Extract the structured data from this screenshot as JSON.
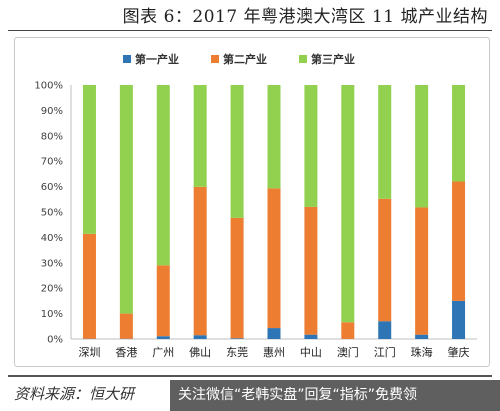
{
  "figure": {
    "title": "图表 6：2017 年粤港澳大湾区 11 城产业结构",
    "source_text": "资料来源：恒大研",
    "watermark_text": "关注微信“老韩实盘”回复“指标”免费领"
  },
  "chart_data": {
    "type": "bar",
    "stacked": true,
    "categories": [
      "深圳",
      "香港",
      "广州",
      "佛山",
      "东莞",
      "惠州",
      "中山",
      "澳门",
      "江门",
      "珠海",
      "肇庆"
    ],
    "series": [
      {
        "name": "第一产业",
        "color": "#2E75B6",
        "values": [
          0.1,
          0.1,
          1.1,
          1.5,
          0.3,
          4.3,
          1.7,
          0.0,
          7.0,
          1.7,
          15.0
        ]
      },
      {
        "name": "第二产业",
        "color": "#ED7D31",
        "values": [
          41.3,
          9.9,
          27.9,
          58.4,
          47.4,
          55.0,
          50.3,
          6.6,
          48.2,
          50.1,
          47.0
        ]
      },
      {
        "name": "第三产业",
        "color": "#92D050",
        "values": [
          58.6,
          90.0,
          71.0,
          40.1,
          52.3,
          40.7,
          48.0,
          93.4,
          44.8,
          48.2,
          38.0
        ]
      }
    ],
    "yticks": [
      "0%",
      "10%",
      "20%",
      "30%",
      "40%",
      "50%",
      "60%",
      "70%",
      "80%",
      "90%",
      "100%"
    ],
    "ylim": [
      0,
      100
    ],
    "grid": false,
    "legend_position": "top-center"
  }
}
